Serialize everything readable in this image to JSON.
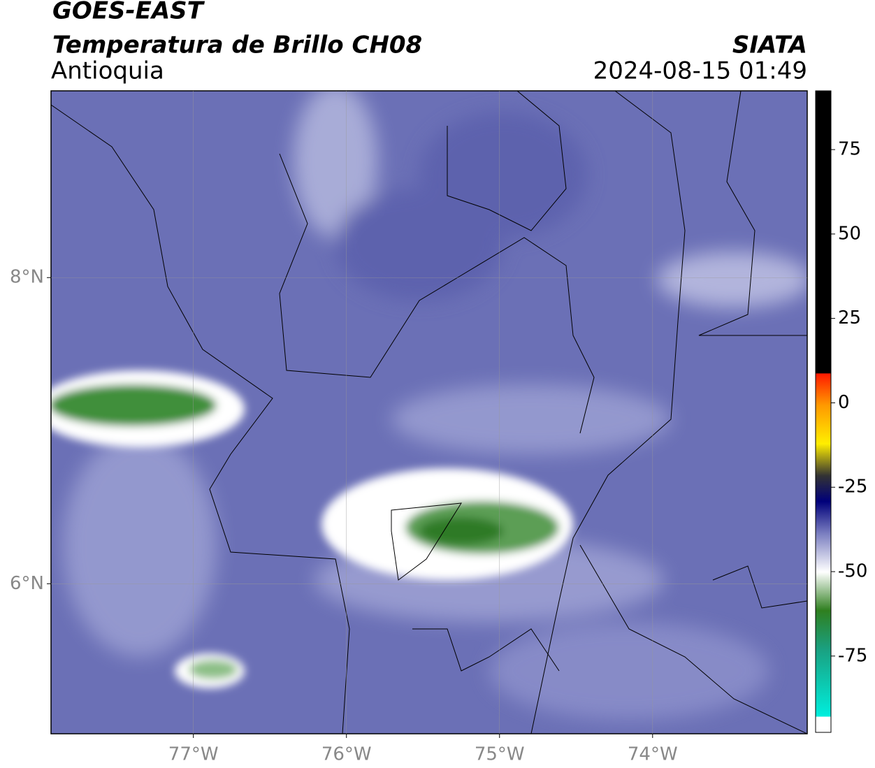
{
  "chart_data": {
    "type": "map",
    "title": "GOES-EAST",
    "subtitle": "Temperatura de Brillo CH08",
    "region": "Antioquia",
    "source": "SIATA",
    "datetime": "2024-08-15 01:49",
    "xlim": [
      -77.93,
      -72.99
    ],
    "ylim": [
      5.02,
      9.22
    ],
    "xticks": [
      {
        "value": -77,
        "label": "77°W"
      },
      {
        "value": -76,
        "label": "76°W"
      },
      {
        "value": -75,
        "label": "75°W"
      },
      {
        "value": -74,
        "label": "74°W"
      }
    ],
    "yticks": [
      {
        "value": 6,
        "label": "6°N"
      },
      {
        "value": 8,
        "label": "8°N"
      }
    ],
    "grid": true,
    "colorbar": {
      "lim": [
        -97.6,
        92.4
      ],
      "ticks": [
        -75,
        -50,
        -25,
        0,
        25,
        50,
        75
      ]
    }
  }
}
